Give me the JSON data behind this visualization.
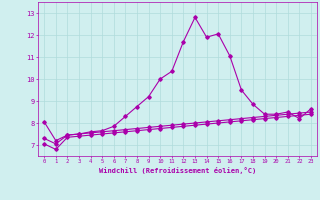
{
  "x": [
    0,
    1,
    2,
    3,
    4,
    5,
    6,
    7,
    8,
    9,
    10,
    11,
    12,
    13,
    14,
    15,
    16,
    17,
    18,
    19,
    20,
    21,
    22,
    23
  ],
  "line1": [
    8.05,
    7.2,
    7.45,
    7.5,
    7.6,
    7.65,
    7.85,
    8.3,
    8.75,
    9.2,
    10.0,
    10.35,
    11.7,
    12.8,
    11.9,
    12.05,
    11.05,
    9.5,
    8.85,
    8.4,
    8.4,
    8.5,
    8.2,
    8.65
  ],
  "line2": [
    7.3,
    7.05,
    7.45,
    7.5,
    7.55,
    7.6,
    7.65,
    7.7,
    7.75,
    7.8,
    7.85,
    7.9,
    7.95,
    8.0,
    8.05,
    8.1,
    8.15,
    8.2,
    8.25,
    8.3,
    8.35,
    8.4,
    8.45,
    8.5
  ],
  "line3": [
    7.05,
    6.8,
    7.35,
    7.4,
    7.45,
    7.5,
    7.55,
    7.6,
    7.65,
    7.7,
    7.75,
    7.8,
    7.85,
    7.9,
    7.95,
    8.0,
    8.05,
    8.1,
    8.15,
    8.2,
    8.25,
    8.3,
    8.35,
    8.4
  ],
  "line_color": "#aa00aa",
  "bg_color": "#d0efef",
  "grid_color": "#b0dcdc",
  "xlabel": "Windchill (Refroidissement éolien,°C)",
  "ylim": [
    6.5,
    13.5
  ],
  "xlim": [
    -0.5,
    23.5
  ],
  "yticks": [
    7,
    8,
    9,
    10,
    11,
    12,
    13
  ],
  "xticks": [
    0,
    1,
    2,
    3,
    4,
    5,
    6,
    7,
    8,
    9,
    10,
    11,
    12,
    13,
    14,
    15,
    16,
    17,
    18,
    19,
    20,
    21,
    22,
    23
  ]
}
